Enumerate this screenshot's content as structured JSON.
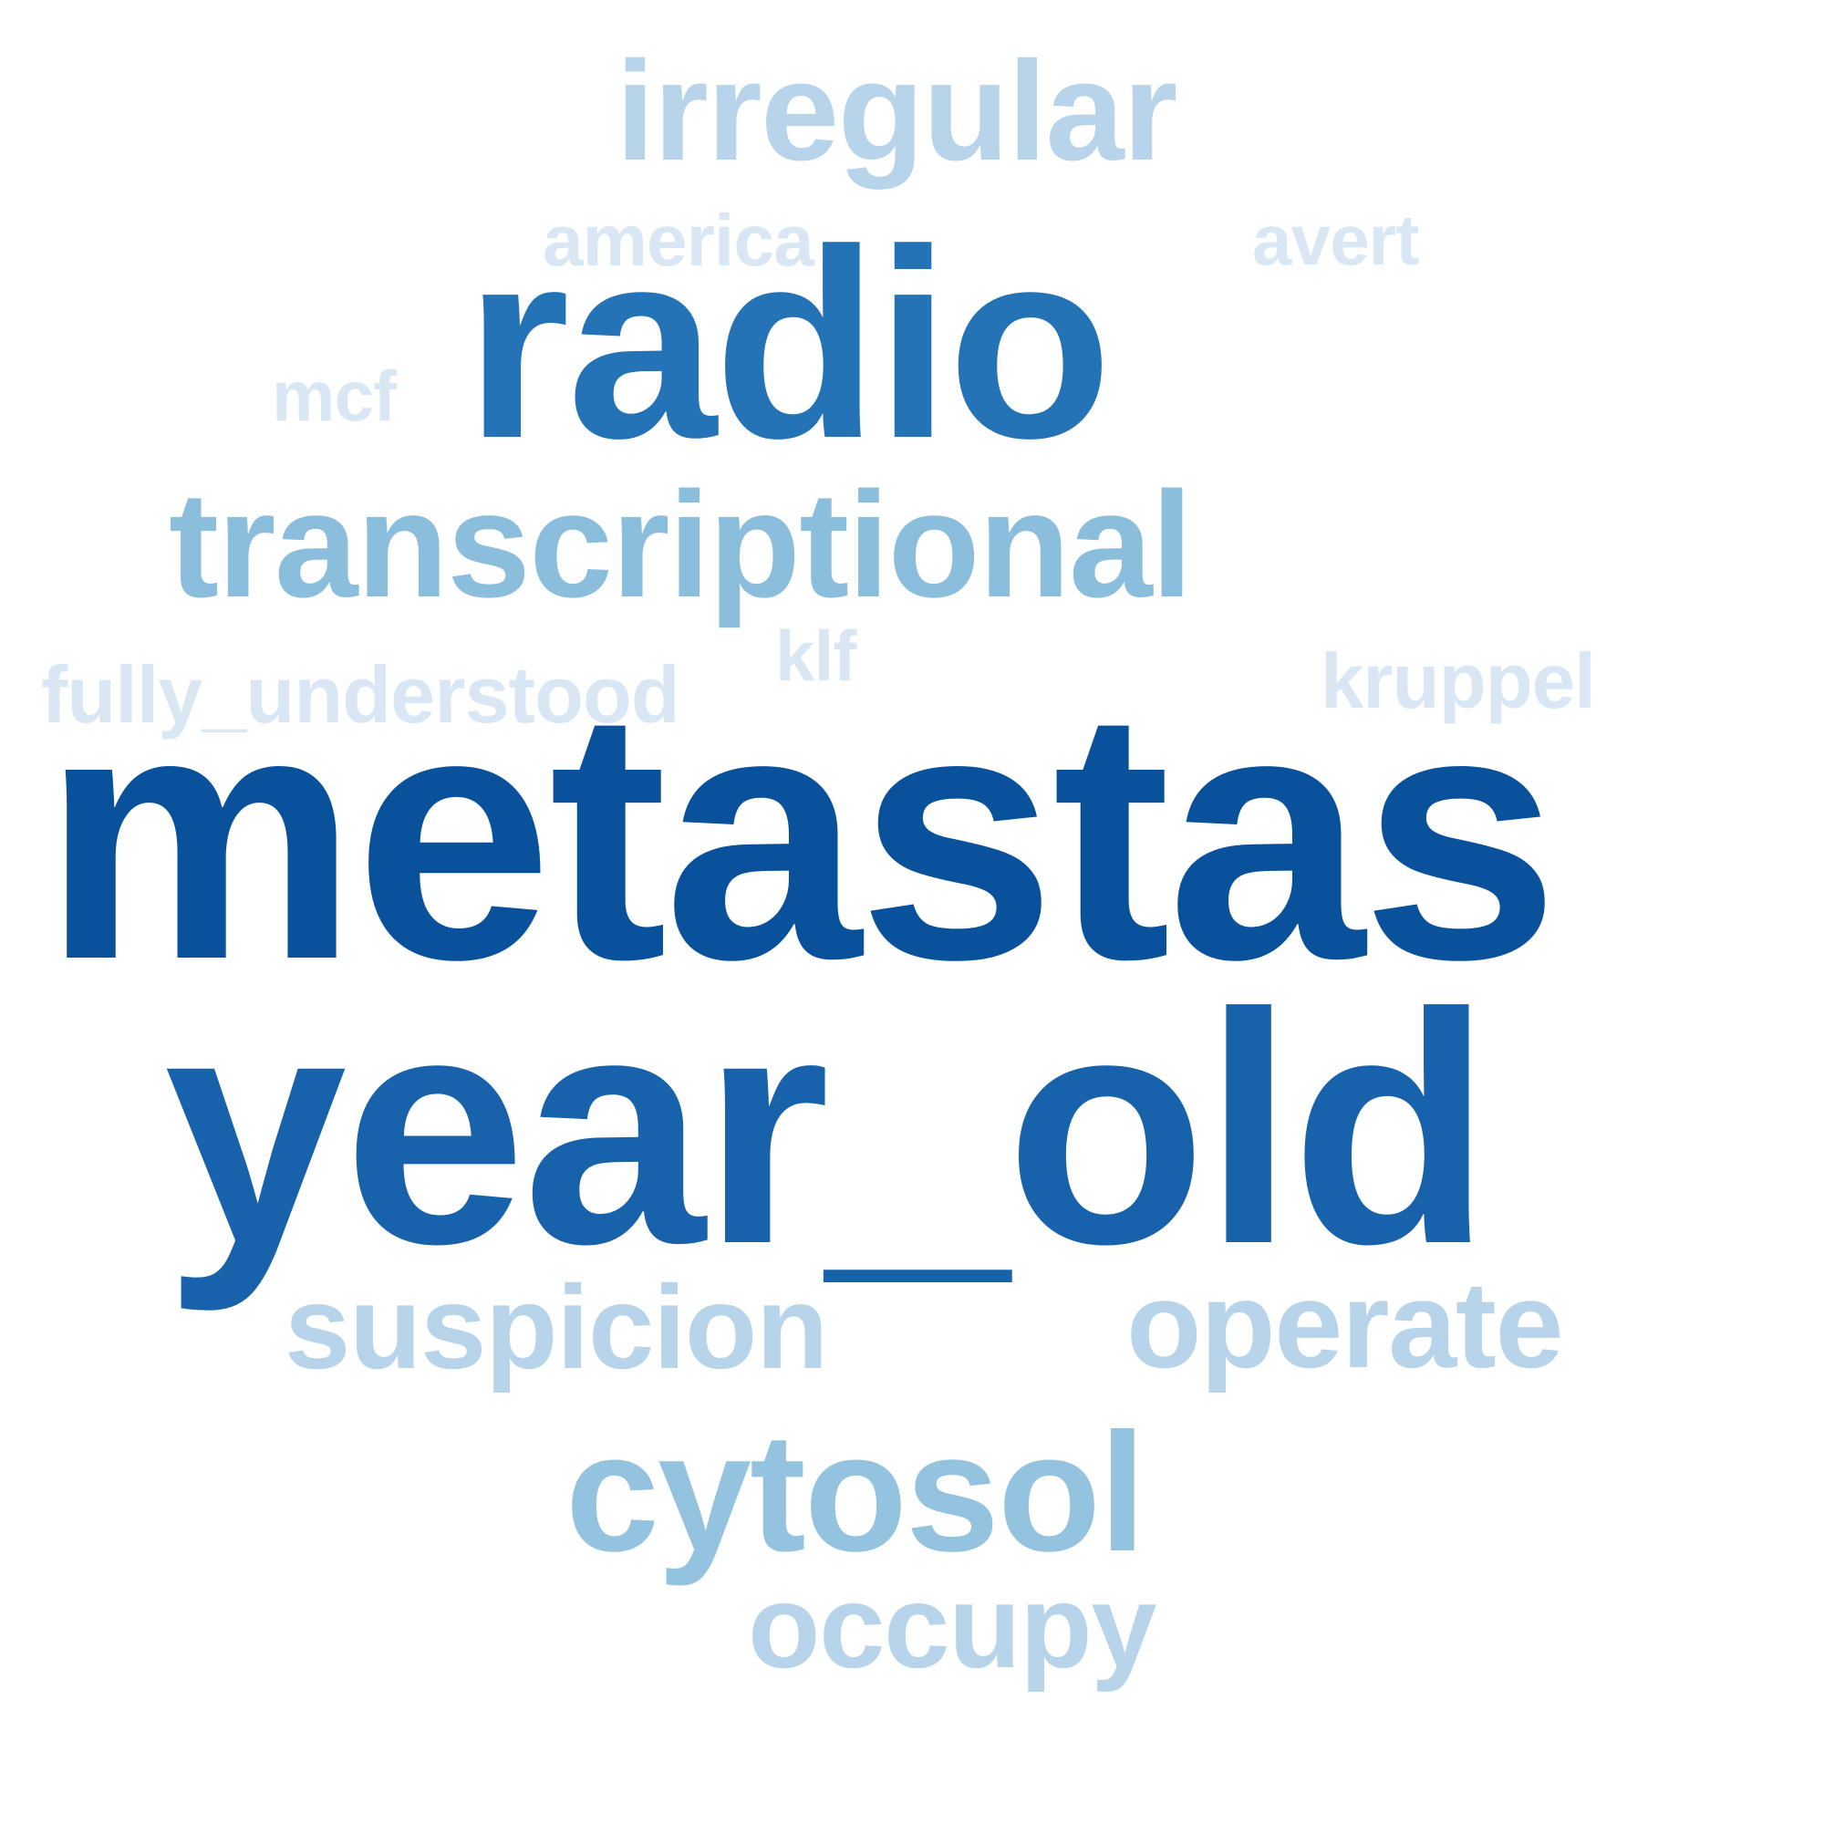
{
  "words": [
    {
      "text": "metastas",
      "color": "#0a519c"
    },
    {
      "text": "year_old",
      "color": "#1762aa"
    },
    {
      "text": "radio",
      "color": "#2473b7"
    },
    {
      "text": "transcriptional",
      "color": "#8abedc"
    },
    {
      "text": "cytosol",
      "color": "#93c3df"
    },
    {
      "text": "irregular",
      "color": "#b7d4ea"
    },
    {
      "text": "suspicion",
      "color": "#b7d4ea"
    },
    {
      "text": "operate",
      "color": "#b7d4ea"
    },
    {
      "text": "occupy",
      "color": "#b7d4ea"
    },
    {
      "text": "fully_understood",
      "color": "#d9e7f5"
    },
    {
      "text": "kruppel",
      "color": "#d9e7f5"
    },
    {
      "text": "america",
      "color": "#d9e7f5"
    },
    {
      "text": "avert",
      "color": "#d9e7f5"
    },
    {
      "text": "mcf",
      "color": "#d9e7f5"
    },
    {
      "text": "klf",
      "color": "#d9e7f5"
    }
  ]
}
